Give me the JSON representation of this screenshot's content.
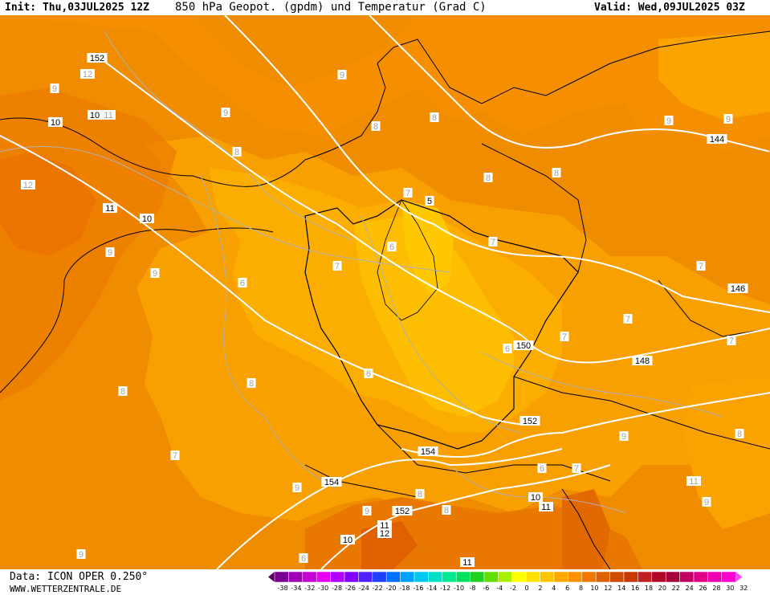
{
  "header": {
    "init": "Init: Thu,03JUL2025 12Z",
    "title": "850 hPa Geopot. (gpdm) und Temperatur (Grad C)",
    "valid": "Valid: Wed,09JUL2025 03Z"
  },
  "footer": {
    "source": "Data: ICON OPER 0.250°",
    "site": "WWW.WETTERZENTRALE.DE"
  },
  "legend": {
    "ticks": [
      "-38",
      "-34",
      "-32",
      "-30",
      "-28",
      "-26",
      "-24",
      "-22",
      "-20",
      "-18",
      "-16",
      "-14",
      "-12",
      "-10",
      "-8",
      "-6",
      "-4",
      "-2",
      "0",
      "2",
      "4",
      "6",
      "8",
      "10",
      "12",
      "14",
      "16",
      "18",
      "20",
      "22",
      "24",
      "26",
      "28",
      "30",
      "32"
    ],
    "colors": [
      "#5a0060",
      "#7a0090",
      "#a000b8",
      "#c800d8",
      "#e800f0",
      "#b000ff",
      "#8000ff",
      "#5020ff",
      "#2040ff",
      "#0070ff",
      "#00a0ff",
      "#00c8f0",
      "#00e0c8",
      "#00e890",
      "#00e060",
      "#20d020",
      "#60e000",
      "#a8f000",
      "#ffff00",
      "#ffe000",
      "#ffc400",
      "#ffa800",
      "#ff9000",
      "#f07800",
      "#e06000",
      "#d04c00",
      "#c83800",
      "#c02020",
      "#b00828",
      "#a8003c",
      "#c00060",
      "#e00088",
      "#f000b0",
      "#ff00d0",
      "#ff40ff"
    ]
  },
  "map": {
    "height_labels": [
      "152",
      "10",
      "10",
      "11",
      "10",
      "144",
      "5",
      "146",
      "150",
      "148",
      "152",
      "154",
      "154",
      "152",
      "10",
      "11",
      "12",
      "11",
      "10",
      "11"
    ],
    "temp_labels": [
      "12",
      "9",
      "9",
      "8",
      "8",
      "12",
      "11",
      "9",
      "8",
      "7",
      "8",
      "7",
      "6",
      "7",
      "6",
      "9",
      "6",
      "8",
      "8",
      "7",
      "7",
      "7",
      "7",
      "6",
      "8",
      "9",
      "9",
      "7",
      "9",
      "8",
      "9",
      "8",
      "6",
      "7",
      "9",
      "11",
      "9",
      "8",
      "9",
      "6",
      "9"
    ]
  }
}
